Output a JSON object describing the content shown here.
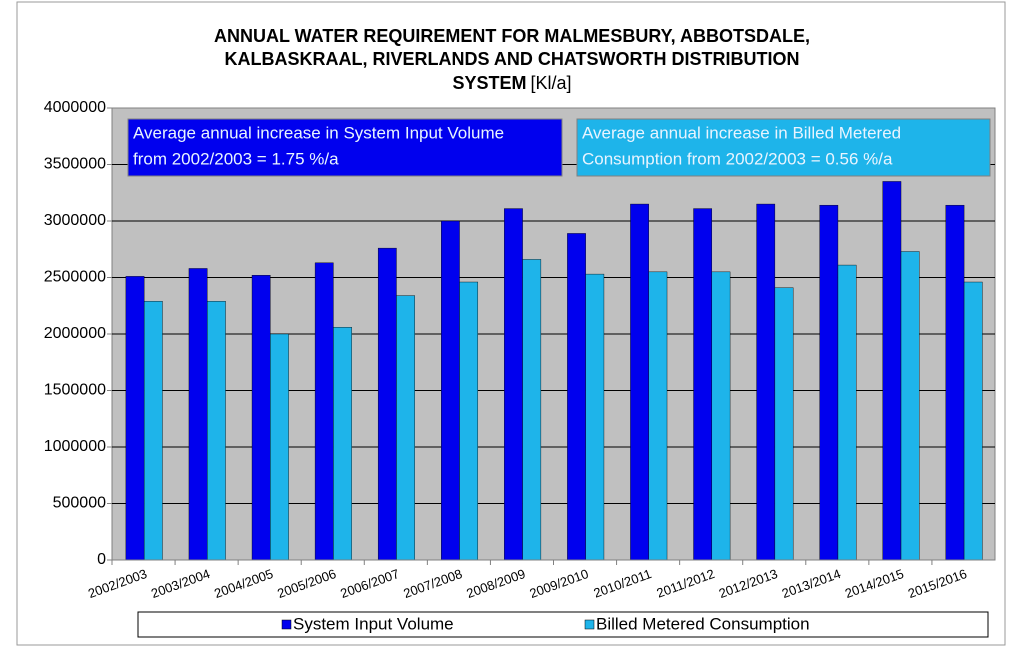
{
  "chart_data": {
    "type": "bar",
    "title_lines": [
      "ANNUAL WATER REQUIREMENT FOR MALMESBURY, ABBOTSDALE,",
      "KALBASKRAAL, RIVERLANDS AND CHATSWORTH  DISTRIBUTION",
      "SYSTEM"
    ],
    "title_unit": "[Kl/a]",
    "categories": [
      "2002/2003",
      "2003/2004",
      "2004/2005",
      "2005/2006",
      "2006/2007",
      "2007/2008",
      "2008/2009",
      "2009/2010",
      "2010/2011",
      "2011/2012",
      "2012/2013",
      "2013/2014",
      "2014/2015",
      "2015/2016"
    ],
    "series": [
      {
        "name": "System Input Volume",
        "color": "#0000ee",
        "values": [
          2510000,
          2580000,
          2520000,
          2630000,
          2760000,
          3000000,
          3110000,
          2890000,
          3150000,
          3110000,
          3150000,
          3140000,
          3350000,
          3140000
        ]
      },
      {
        "name": "Billed Metered Consumption",
        "color": "#1eb4ea",
        "values": [
          2290000,
          2290000,
          2000000,
          2060000,
          2340000,
          2460000,
          2660000,
          2530000,
          2550000,
          2550000,
          2410000,
          2610000,
          2730000,
          2460000
        ]
      }
    ],
    "ylim": [
      0,
      4000000
    ],
    "yticks": [
      0,
      500000,
      1000000,
      1500000,
      2000000,
      2500000,
      3000000,
      3500000,
      4000000
    ],
    "grid": true,
    "legend": "bottom",
    "annotations": [
      {
        "lines": [
          "Average annual increase in System Input Volume",
          "from 2002/2003 =  1.75 %/a"
        ],
        "color": "#0000ee"
      },
      {
        "lines": [
          "Average annual increase in Billed Metered",
          "Consumption from 2002/2003 =  0.56 %/a"
        ],
        "color": "#1eb4ea"
      }
    ]
  }
}
